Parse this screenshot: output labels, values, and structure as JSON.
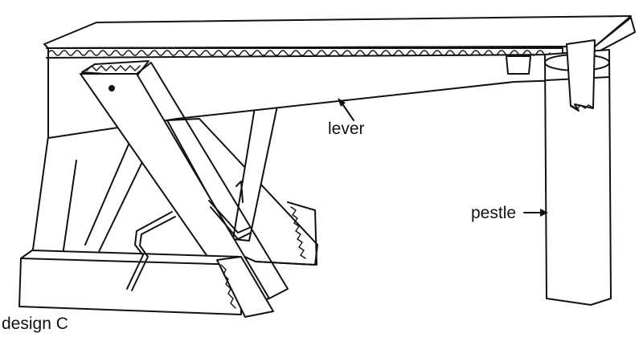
{
  "labels": {
    "lever": "lever",
    "pestle": "pestle",
    "caption": "design C"
  },
  "colors": {
    "ink": "#111111",
    "paper": "#ffffff"
  }
}
